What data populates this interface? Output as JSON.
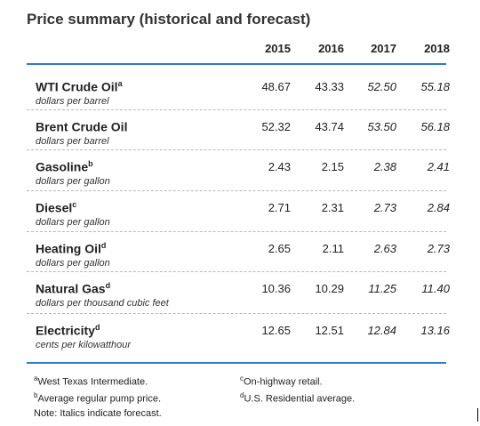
{
  "title": "Price summary (historical and forecast)",
  "years": [
    "2015",
    "2016",
    "2017",
    "2018"
  ],
  "forecast_years": [
    "2017",
    "2018"
  ],
  "rows": [
    {
      "name": "WTI Crude Oil",
      "sup": "a",
      "unit": "dollars per barrel",
      "values": [
        "48.67",
        "43.33",
        "52.50",
        "55.18"
      ]
    },
    {
      "name": "Brent Crude Oil",
      "sup": "",
      "unit": "dollars per barrel",
      "values": [
        "52.32",
        "43.74",
        "53.50",
        "56.18"
      ]
    },
    {
      "name": "Gasoline",
      "sup": "b",
      "unit": "dollars per gallon",
      "values": [
        "2.43",
        "2.15",
        "2.38",
        "2.41"
      ]
    },
    {
      "name": "Diesel",
      "sup": "c",
      "unit": "dollars per gallon",
      "values": [
        "2.71",
        "2.31",
        "2.73",
        "2.84"
      ]
    },
    {
      "name": "Heating Oil",
      "sup": "d",
      "unit": "dollars per gallon",
      "values": [
        "2.65",
        "2.11",
        "2.63",
        "2.73"
      ]
    },
    {
      "name": "Natural Gas",
      "sup": "d",
      "unit": "dollars per thousand cubic feet",
      "values": [
        "10.36",
        "10.29",
        "11.25",
        "11.40"
      ]
    },
    {
      "name": "Electricity",
      "sup": "d",
      "unit": "cents per kilowatthour",
      "values": [
        "12.65",
        "12.51",
        "12.84",
        "13.16"
      ]
    }
  ],
  "footnotes": {
    "a": {
      "sup": "a",
      "text": "West Texas Intermediate."
    },
    "b": {
      "sup": "b",
      "text": "Average regular pump price."
    },
    "c": {
      "sup": "c",
      "text": "On-highway retail."
    },
    "d": {
      "sup": "d",
      "text": "U.S. Residential average."
    },
    "note": "Note: Italics indicate forecast."
  },
  "colors": {
    "rule": "#2b7bc3",
    "separator": "#b7b7b7"
  }
}
